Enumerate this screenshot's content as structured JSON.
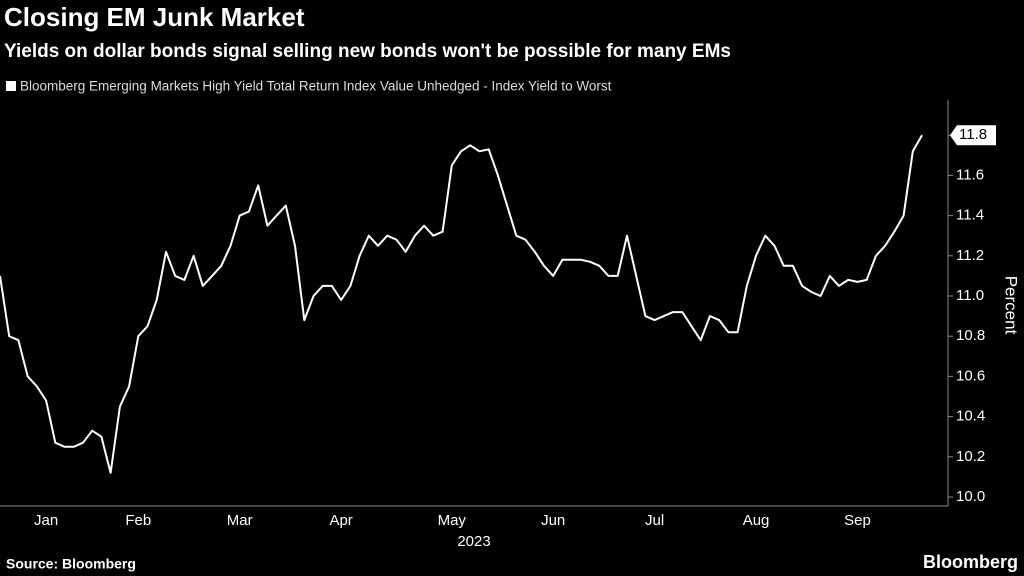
{
  "chart_data": {
    "type": "line",
    "title": "Closing EM Junk Market",
    "subtitle": "Yields on dollar bonds signal selling new bonds won't be possible for many EMs",
    "ylabel": "Percent",
    "xlabel": "2023",
    "source": "Source: Bloomberg",
    "brand": "Bloomberg",
    "categories": [
      null,
      null,
      null,
      null,
      null,
      "Jan",
      null,
      null,
      null,
      null,
      null,
      null,
      null,
      null,
      null,
      "Feb",
      null,
      null,
      null,
      null,
      null,
      null,
      null,
      null,
      null,
      null,
      "Mar",
      null,
      null,
      null,
      null,
      null,
      null,
      null,
      null,
      null,
      null,
      "Apr",
      null,
      null,
      null,
      null,
      null,
      null,
      null,
      null,
      null,
      null,
      null,
      "May",
      null,
      null,
      null,
      null,
      null,
      null,
      null,
      null,
      null,
      null,
      "Jun",
      null,
      null,
      null,
      null,
      null,
      null,
      null,
      null,
      null,
      null,
      "Jul",
      null,
      null,
      null,
      null,
      null,
      null,
      null,
      null,
      null,
      null,
      "Aug",
      null,
      null,
      null,
      null,
      null,
      null,
      null,
      null,
      null,
      null,
      "Sep",
      null,
      null,
      null,
      null,
      null,
      null,
      null
    ],
    "series": [
      {
        "name": "Bloomberg Emerging Markets High Yield Total Return Index Value Unhedged - Index Yield to Worst",
        "color": "#ffffff",
        "values": [
          11.1,
          10.8,
          10.78,
          10.6,
          10.55,
          10.48,
          10.27,
          10.25,
          10.25,
          10.27,
          10.33,
          10.3,
          10.12,
          10.45,
          10.55,
          10.8,
          10.85,
          10.98,
          11.22,
          11.1,
          11.08,
          11.2,
          11.05,
          11.1,
          11.15,
          11.25,
          11.4,
          11.42,
          11.55,
          11.35,
          11.4,
          11.45,
          11.25,
          10.88,
          11.0,
          11.05,
          11.05,
          10.98,
          11.05,
          11.2,
          11.3,
          11.25,
          11.3,
          11.28,
          11.22,
          11.3,
          11.35,
          11.3,
          11.32,
          11.65,
          11.72,
          11.75,
          11.72,
          11.73,
          11.6,
          11.45,
          11.3,
          11.28,
          11.22,
          11.15,
          11.1,
          11.18,
          11.18,
          11.18,
          11.17,
          11.15,
          11.1,
          11.1,
          11.3,
          11.1,
          10.9,
          10.88,
          10.9,
          10.92,
          10.92,
          10.85,
          10.78,
          10.9,
          10.88,
          10.82,
          10.82,
          11.05,
          11.2,
          11.3,
          11.25,
          11.15,
          11.15,
          11.05,
          11.02,
          11.0,
          11.1,
          11.05,
          11.08,
          11.07,
          11.08,
          11.2,
          11.25,
          11.32,
          11.4,
          11.72,
          11.8
        ],
        "value_labels": [
          null,
          null,
          null,
          null,
          null,
          null,
          null,
          null,
          null,
          null,
          null,
          null,
          null,
          null,
          null,
          null,
          null,
          null,
          null,
          null,
          null,
          null,
          null,
          null,
          null,
          null,
          null,
          null,
          null,
          null,
          null,
          null,
          null,
          null,
          null,
          null,
          null,
          null,
          null,
          null,
          null,
          null,
          null,
          null,
          null,
          null,
          null,
          null,
          null,
          null,
          null,
          null,
          null,
          null,
          null,
          null,
          null,
          null,
          null,
          null,
          null,
          null,
          null,
          null,
          null,
          null,
          null,
          null,
          null,
          null,
          null,
          null,
          null,
          null,
          null,
          null,
          null,
          null,
          null,
          null,
          null,
          null,
          null,
          null,
          null,
          null,
          null,
          null,
          null,
          null,
          null,
          null,
          null,
          null,
          null,
          null,
          null,
          null,
          null,
          null,
          "11.8"
        ]
      }
    ],
    "ylim": [
      10.0,
      12.0
    ],
    "yticks": [
      {
        "value": 10,
        "label": "10.0"
      },
      10.2,
      10.4,
      10.6,
      10.8,
      {
        "value": 11,
        "label": "11.0"
      },
      11.2,
      11.4,
      11.6,
      11.8
    ]
  }
}
